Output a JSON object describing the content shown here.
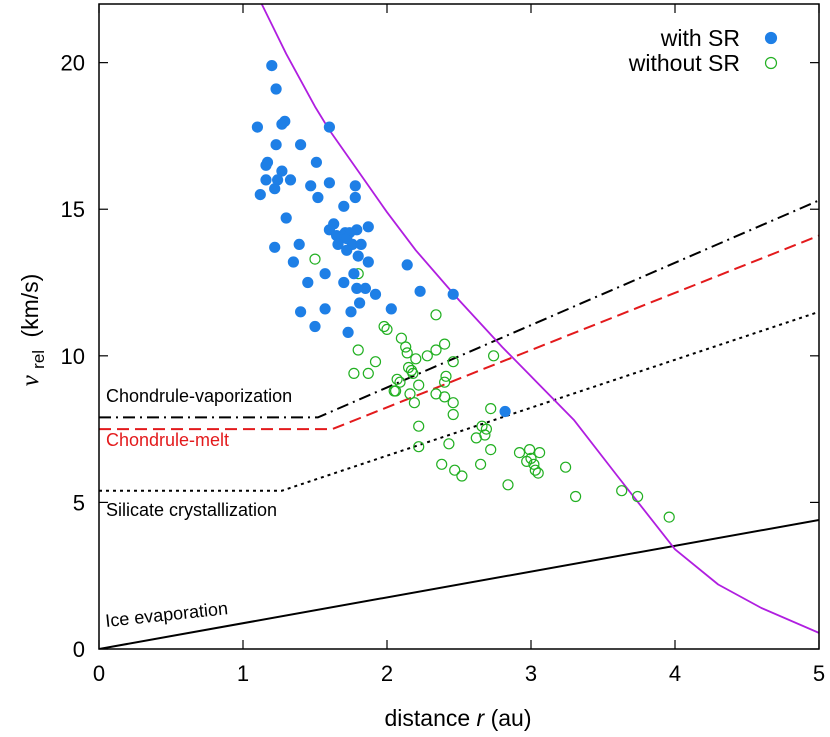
{
  "chart_data": {
    "type": "scatter",
    "xlabel": {
      "text": "distance",
      "var": "r",
      "unit": "(au)"
    },
    "ylabel": {
      "var": "v",
      "sub": "rel",
      "unit": "(km/s)"
    },
    "xlim": [
      0,
      5
    ],
    "ylim": [
      0,
      22
    ],
    "x_ticks": [
      0,
      1,
      2,
      3,
      4,
      5
    ],
    "y_ticks": [
      0,
      5,
      10,
      15,
      20
    ],
    "grid": false,
    "legend_position": "top-right",
    "series": [
      {
        "name": "with SR",
        "marker": "filled-circle",
        "color": "#1e7fe6",
        "points": [
          [
            1.2,
            19.9
          ],
          [
            1.23,
            19.1
          ],
          [
            1.29,
            18.0
          ],
          [
            1.27,
            17.9
          ],
          [
            1.1,
            17.8
          ],
          [
            1.6,
            17.8
          ],
          [
            1.23,
            17.2
          ],
          [
            1.4,
            17.2
          ],
          [
            1.17,
            16.6
          ],
          [
            1.51,
            16.6
          ],
          [
            1.16,
            16.5
          ],
          [
            1.27,
            16.3
          ],
          [
            1.24,
            16.0
          ],
          [
            1.16,
            16.0
          ],
          [
            1.33,
            16.0
          ],
          [
            1.6,
            15.9
          ],
          [
            1.78,
            15.8
          ],
          [
            1.47,
            15.8
          ],
          [
            1.22,
            15.7
          ],
          [
            1.12,
            15.5
          ],
          [
            1.78,
            15.4
          ],
          [
            1.52,
            15.4
          ],
          [
            1.7,
            15.1
          ],
          [
            1.3,
            14.7
          ],
          [
            1.63,
            14.5
          ],
          [
            1.87,
            14.4
          ],
          [
            1.6,
            14.3
          ],
          [
            1.79,
            14.3
          ],
          [
            1.65,
            14.1
          ],
          [
            1.71,
            14.2
          ],
          [
            1.74,
            14.2
          ],
          [
            1.68,
            14.0
          ],
          [
            1.72,
            14.0
          ],
          [
            1.66,
            13.8
          ],
          [
            1.76,
            13.8
          ],
          [
            1.39,
            13.8
          ],
          [
            1.82,
            13.8
          ],
          [
            1.22,
            13.7
          ],
          [
            1.72,
            13.6
          ],
          [
            1.8,
            13.4
          ],
          [
            1.35,
            13.2
          ],
          [
            1.87,
            13.2
          ],
          [
            2.14,
            13.1
          ],
          [
            1.77,
            12.8
          ],
          [
            1.57,
            12.8
          ],
          [
            1.7,
            12.5
          ],
          [
            1.45,
            12.5
          ],
          [
            1.85,
            12.3
          ],
          [
            1.79,
            12.3
          ],
          [
            2.23,
            12.2
          ],
          [
            1.92,
            12.1
          ],
          [
            2.46,
            12.1
          ],
          [
            1.81,
            11.8
          ],
          [
            1.57,
            11.6
          ],
          [
            2.03,
            11.6
          ],
          [
            1.4,
            11.5
          ],
          [
            1.75,
            11.5
          ],
          [
            1.5,
            11.0
          ],
          [
            1.73,
            10.8
          ],
          [
            2.82,
            8.1
          ]
        ]
      },
      {
        "name": "without SR",
        "marker": "open-circle",
        "color": "#22b022",
        "points": [
          [
            1.5,
            13.3
          ],
          [
            1.8,
            12.8
          ],
          [
            2.34,
            11.4
          ],
          [
            1.98,
            11.0
          ],
          [
            2.0,
            10.9
          ],
          [
            2.1,
            10.6
          ],
          [
            2.4,
            10.4
          ],
          [
            2.13,
            10.3
          ],
          [
            1.8,
            10.2
          ],
          [
            2.34,
            10.2
          ],
          [
            2.14,
            10.1
          ],
          [
            2.28,
            10.0
          ],
          [
            2.74,
            10.0
          ],
          [
            2.2,
            9.9
          ],
          [
            2.46,
            9.8
          ],
          [
            1.92,
            9.8
          ],
          [
            2.15,
            9.6
          ],
          [
            2.17,
            9.5
          ],
          [
            2.18,
            9.4
          ],
          [
            1.87,
            9.4
          ],
          [
            1.77,
            9.4
          ],
          [
            2.41,
            9.3
          ],
          [
            2.07,
            9.2
          ],
          [
            2.09,
            9.1
          ],
          [
            2.4,
            9.1
          ],
          [
            2.22,
            9.0
          ],
          [
            2.06,
            8.8
          ],
          [
            2.05,
            8.8
          ],
          [
            2.16,
            8.7
          ],
          [
            2.34,
            8.7
          ],
          [
            2.4,
            8.6
          ],
          [
            2.46,
            8.4
          ],
          [
            2.19,
            8.4
          ],
          [
            2.72,
            8.2
          ],
          [
            2.46,
            8.0
          ],
          [
            2.22,
            7.6
          ],
          [
            2.66,
            7.6
          ],
          [
            2.69,
            7.5
          ],
          [
            2.68,
            7.3
          ],
          [
            2.62,
            7.2
          ],
          [
            2.43,
            7.0
          ],
          [
            2.22,
            6.9
          ],
          [
            2.72,
            6.8
          ],
          [
            2.92,
            6.7
          ],
          [
            3.06,
            6.7
          ],
          [
            2.99,
            6.8
          ],
          [
            3.0,
            6.5
          ],
          [
            2.97,
            6.4
          ],
          [
            3.02,
            6.3
          ],
          [
            2.38,
            6.3
          ],
          [
            3.03,
            6.1
          ],
          [
            2.65,
            6.3
          ],
          [
            2.47,
            6.1
          ],
          [
            3.05,
            6.0
          ],
          [
            2.52,
            5.9
          ],
          [
            3.24,
            6.2
          ],
          [
            2.84,
            5.6
          ],
          [
            3.63,
            5.4
          ],
          [
            3.31,
            5.2
          ],
          [
            3.74,
            5.2
          ],
          [
            3.96,
            4.5
          ]
        ]
      }
    ],
    "threshold_lines": [
      {
        "label": "Chondrule-vaporization",
        "style": "dash-dot",
        "color": "#000000",
        "points": [
          [
            0,
            7.9
          ],
          [
            1.52,
            7.9
          ],
          [
            5,
            15.3
          ]
        ]
      },
      {
        "label": "Chondrule-melt",
        "style": "dashed",
        "color": "#e31a1c",
        "points": [
          [
            0,
            7.5
          ],
          [
            1.62,
            7.5
          ],
          [
            5,
            14.1
          ]
        ]
      },
      {
        "label": "Silicate crystallization",
        "style": "dotted",
        "color": "#000000",
        "points": [
          [
            0,
            5.4
          ],
          [
            1.27,
            5.4
          ],
          [
            5,
            11.5
          ]
        ]
      },
      {
        "label": "Ice evaporation",
        "style": "solid",
        "color": "#000000",
        "points": [
          [
            0,
            0
          ],
          [
            5,
            4.4
          ]
        ]
      }
    ],
    "curve": {
      "color": "#b01ee0",
      "style": "solid",
      "points": [
        [
          1.13,
          22.0
        ],
        [
          1.2,
          21.3
        ],
        [
          1.3,
          20.3
        ],
        [
          1.4,
          19.4
        ],
        [
          1.5,
          18.5
        ],
        [
          1.6,
          17.7
        ],
        [
          1.8,
          16.3
        ],
        [
          2.0,
          14.9
        ],
        [
          2.2,
          13.6
        ],
        [
          2.5,
          11.9
        ],
        [
          2.8,
          10.3
        ],
        [
          3.0,
          9.3
        ],
        [
          3.3,
          7.8
        ],
        [
          3.6,
          5.9
        ],
        [
          4.0,
          3.4
        ],
        [
          4.3,
          2.2
        ],
        [
          4.6,
          1.4
        ],
        [
          5.0,
          0.55
        ]
      ]
    }
  }
}
